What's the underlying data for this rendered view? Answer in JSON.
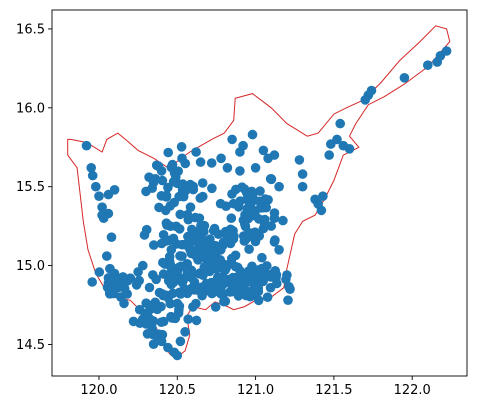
{
  "chart_data": {
    "type": "scatter",
    "title": "",
    "xlabel": "",
    "ylabel": "",
    "xlim": [
      119.7,
      122.35
    ],
    "ylim": [
      14.3,
      16.62
    ],
    "xticks": [
      120.0,
      120.5,
      121.0,
      121.5,
      122.0
    ],
    "xtick_labels": [
      "120.0",
      "120.5",
      "121.0",
      "121.5",
      "122.0"
    ],
    "yticks": [
      14.5,
      15.0,
      15.5,
      16.0,
      16.5
    ],
    "ytick_labels": [
      "14.5",
      "15.0",
      "15.5",
      "16.0",
      "16.5"
    ],
    "grid": false,
    "colors": {
      "points": "#1f77b4",
      "boundary": "#d62728",
      "axes": "#000000"
    },
    "boundary": [
      [
        119.82,
        15.8
      ],
      [
        119.92,
        15.78
      ],
      [
        120.02,
        15.72
      ],
      [
        120.05,
        15.8
      ],
      [
        120.12,
        15.84
      ],
      [
        120.18,
        15.79
      ],
      [
        120.25,
        15.73
      ],
      [
        120.35,
        15.68
      ],
      [
        120.44,
        15.62
      ],
      [
        120.5,
        15.66
      ],
      [
        120.58,
        15.72
      ],
      [
        120.65,
        15.76
      ],
      [
        120.72,
        15.8
      ],
      [
        120.8,
        15.84
      ],
      [
        120.86,
        15.92
      ],
      [
        120.87,
        16.06
      ],
      [
        120.98,
        16.09
      ],
      [
        121.1,
        16.0
      ],
      [
        121.2,
        15.9
      ],
      [
        121.33,
        15.82
      ],
      [
        121.4,
        15.84
      ],
      [
        121.5,
        15.96
      ],
      [
        121.58,
        16.0
      ],
      [
        121.69,
        16.05
      ],
      [
        121.8,
        16.16
      ],
      [
        121.92,
        16.3
      ],
      [
        122.05,
        16.42
      ],
      [
        122.15,
        16.52
      ],
      [
        122.22,
        16.5
      ],
      [
        122.24,
        16.42
      ],
      [
        122.1,
        16.26
      ],
      [
        121.95,
        16.15
      ],
      [
        121.82,
        16.07
      ],
      [
        121.72,
        16.02
      ],
      [
        121.64,
        15.9
      ],
      [
        121.6,
        15.82
      ],
      [
        121.66,
        15.75
      ],
      [
        121.56,
        15.7
      ],
      [
        121.5,
        15.54
      ],
      [
        121.44,
        15.42
      ],
      [
        121.38,
        15.32
      ],
      [
        121.3,
        15.28
      ],
      [
        121.25,
        15.2
      ],
      [
        121.2,
        14.98
      ],
      [
        121.18,
        14.86
      ],
      [
        121.1,
        14.8
      ],
      [
        121.0,
        14.78
      ],
      [
        120.93,
        14.74
      ],
      [
        120.86,
        14.72
      ],
      [
        120.8,
        14.75
      ],
      [
        120.74,
        14.77
      ],
      [
        120.68,
        14.72
      ],
      [
        120.6,
        14.74
      ],
      [
        120.56,
        14.68
      ],
      [
        120.58,
        14.56
      ],
      [
        120.55,
        14.46
      ],
      [
        120.5,
        14.42
      ],
      [
        120.45,
        14.44
      ],
      [
        120.4,
        14.55
      ],
      [
        120.35,
        14.63
      ],
      [
        120.26,
        14.72
      ],
      [
        120.2,
        14.78
      ],
      [
        120.1,
        14.8
      ],
      [
        120.04,
        14.85
      ],
      [
        119.98,
        14.95
      ],
      [
        119.93,
        15.1
      ],
      [
        119.9,
        15.28
      ],
      [
        119.88,
        15.45
      ],
      [
        119.86,
        15.62
      ],
      [
        119.8,
        15.7
      ],
      [
        119.8,
        15.8
      ]
    ],
    "clusters": [
      {
        "cx": 120.66,
        "cy": 15.02,
        "sx": 0.12,
        "sy": 0.14,
        "n": 120
      },
      {
        "cx": 120.95,
        "cy": 15.34,
        "sx": 0.1,
        "sy": 0.14,
        "n": 70
      },
      {
        "cx": 120.88,
        "cy": 14.88,
        "sx": 0.12,
        "sy": 0.05,
        "n": 55
      },
      {
        "cx": 120.38,
        "cy": 14.7,
        "sx": 0.08,
        "sy": 0.14,
        "n": 45
      },
      {
        "cx": 120.42,
        "cy": 15.25,
        "sx": 0.08,
        "sy": 0.2,
        "n": 25
      },
      {
        "cx": 121.05,
        "cy": 14.9,
        "sx": 0.08,
        "sy": 0.05,
        "n": 25
      },
      {
        "cx": 120.1,
        "cy": 14.9,
        "sx": 0.07,
        "sy": 0.07,
        "n": 18
      },
      {
        "cx": 120.55,
        "cy": 15.5,
        "sx": 0.1,
        "sy": 0.12,
        "n": 25
      }
    ],
    "points": [
      [
        119.92,
        15.76
      ],
      [
        119.95,
        15.62
      ],
      [
        119.96,
        15.57
      ],
      [
        119.98,
        15.5
      ],
      [
        120.0,
        15.44
      ],
      [
        120.02,
        15.37
      ],
      [
        120.06,
        15.45
      ],
      [
        120.1,
        15.48
      ],
      [
        120.03,
        15.3
      ],
      [
        120.06,
        15.33
      ],
      [
        120.02,
        15.32
      ],
      [
        120.08,
        15.18
      ],
      [
        120.05,
        15.06
      ],
      [
        120.07,
        14.98
      ],
      [
        120.1,
        14.95
      ],
      [
        120.06,
        14.89
      ],
      [
        120.12,
        14.86
      ],
      [
        120.14,
        14.8
      ],
      [
        120.16,
        14.76
      ],
      [
        120.18,
        14.82
      ],
      [
        120.25,
        14.96
      ],
      [
        120.26,
        14.72
      ],
      [
        120.28,
        14.66
      ],
      [
        120.3,
        14.63
      ],
      [
        120.34,
        14.6
      ],
      [
        120.4,
        14.52
      ],
      [
        120.44,
        14.48
      ],
      [
        120.48,
        14.45
      ],
      [
        120.5,
        14.43
      ],
      [
        120.52,
        14.52
      ],
      [
        120.55,
        14.58
      ],
      [
        120.57,
        14.66
      ],
      [
        120.36,
        15.55
      ],
      [
        120.38,
        15.63
      ],
      [
        120.4,
        15.6
      ],
      [
        120.3,
        15.47
      ],
      [
        120.53,
        15.68
      ],
      [
        120.62,
        15.72
      ],
      [
        120.72,
        15.65
      ],
      [
        120.85,
        15.8
      ],
      [
        120.9,
        15.72
      ],
      [
        120.92,
        15.76
      ],
      [
        120.98,
        15.83
      ],
      [
        121.05,
        15.73
      ],
      [
        121.08,
        15.68
      ],
      [
        121.12,
        15.7
      ],
      [
        120.78,
        15.68
      ],
      [
        120.82,
        15.62
      ],
      [
        120.9,
        15.6
      ],
      [
        121.0,
        15.62
      ],
      [
        121.1,
        15.55
      ],
      [
        121.15,
        15.5
      ],
      [
        121.12,
        15.3
      ],
      [
        121.1,
        15.25
      ],
      [
        121.12,
        15.15
      ],
      [
        121.15,
        15.1
      ],
      [
        121.2,
        14.94
      ],
      [
        121.22,
        14.85
      ],
      [
        121.28,
        15.67
      ],
      [
        121.3,
        15.58
      ],
      [
        121.3,
        15.5
      ],
      [
        121.38,
        15.42
      ],
      [
        121.4,
        15.39
      ],
      [
        121.43,
        15.44
      ],
      [
        121.42,
        15.35
      ],
      [
        121.47,
        15.7
      ],
      [
        121.48,
        15.77
      ],
      [
        121.52,
        15.8
      ],
      [
        121.54,
        15.9
      ],
      [
        121.56,
        15.76
      ],
      [
        121.6,
        15.74
      ],
      [
        121.7,
        16.05
      ],
      [
        121.72,
        16.08
      ],
      [
        121.74,
        16.11
      ],
      [
        121.95,
        16.19
      ],
      [
        122.1,
        16.27
      ],
      [
        122.16,
        16.29
      ],
      [
        122.18,
        16.33
      ],
      [
        122.22,
        16.36
      ],
      [
        120.5,
        14.96
      ],
      [
        120.46,
        14.92
      ],
      [
        120.44,
        14.8
      ],
      [
        120.5,
        14.76
      ],
      [
        120.6,
        14.86
      ],
      [
        120.7,
        14.86
      ],
      [
        120.78,
        14.82
      ],
      [
        120.95,
        14.83
      ],
      [
        121.02,
        14.78
      ],
      [
        120.4,
        15.14
      ],
      [
        120.45,
        15.16
      ],
      [
        120.35,
        15.13
      ],
      [
        120.28,
        15.0
      ],
      [
        120.2,
        14.92
      ],
      [
        120.32,
        15.56
      ],
      [
        120.42,
        15.44
      ],
      [
        120.48,
        15.4
      ]
    ]
  }
}
